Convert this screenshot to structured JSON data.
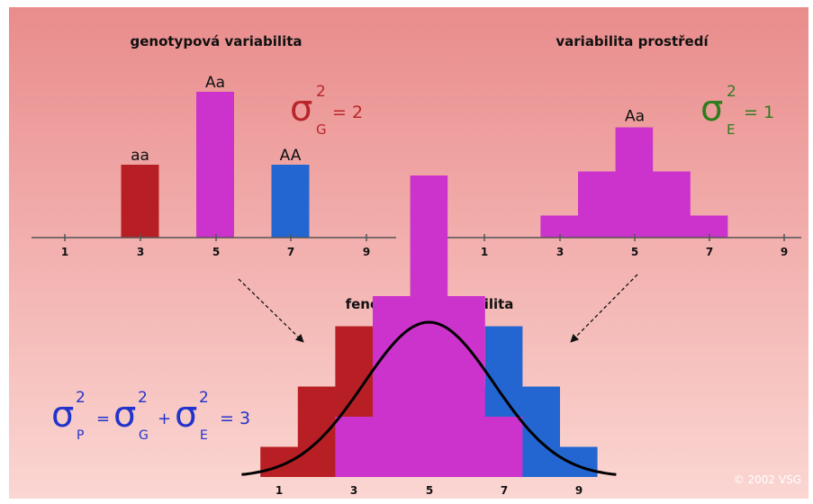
{
  "colors": {
    "aa": "#b81f24",
    "Aa": "#cc33cc",
    "AA": "#2366d1",
    "sigma_g": "#b8262a",
    "sigma_e": "#2e7d1e",
    "sigma_p": "#2233cc"
  },
  "genotype_panel": {
    "title": "genotypová variabilita",
    "ticks": [
      "1",
      "3",
      "5",
      "7",
      "9"
    ],
    "bars": [
      {
        "label": "aa",
        "x": 3,
        "freq": 1,
        "color_key": "aa"
      },
      {
        "label": "Aa",
        "x": 5,
        "freq": 2,
        "color_key": "Aa"
      },
      {
        "label": "AA",
        "x": 7,
        "freq": 1,
        "color_key": "AA"
      }
    ],
    "variance": {
      "symbol": "σ",
      "exponent": "2",
      "subscript": "G",
      "equals": "= 2"
    }
  },
  "environment_panel": {
    "title": "variabilita prostředí",
    "ticks": [
      "1",
      "3",
      "5",
      "7",
      "9"
    ],
    "label": "Aa",
    "distribution": [
      {
        "x": 3,
        "freq": 1
      },
      {
        "x": 4,
        "freq": 3
      },
      {
        "x": 5,
        "freq": 5
      },
      {
        "x": 6,
        "freq": 3
      },
      {
        "x": 7,
        "freq": 1
      }
    ],
    "variance": {
      "symbol": "σ",
      "exponent": "2",
      "subscript": "E",
      "equals": "= 1"
    }
  },
  "phenotype_panel": {
    "title": "fenotypová variabilita",
    "ticks": [
      "1",
      "3",
      "5",
      "7",
      "9"
    ],
    "formula": {
      "symbol": "σ",
      "exponent": "2",
      "p_sub": "P",
      "g_sub": "G",
      "e_sub": "E",
      "eq": "=",
      "plus": "+",
      "result": "= 3"
    }
  },
  "copyright": "© 2002 VSG"
}
